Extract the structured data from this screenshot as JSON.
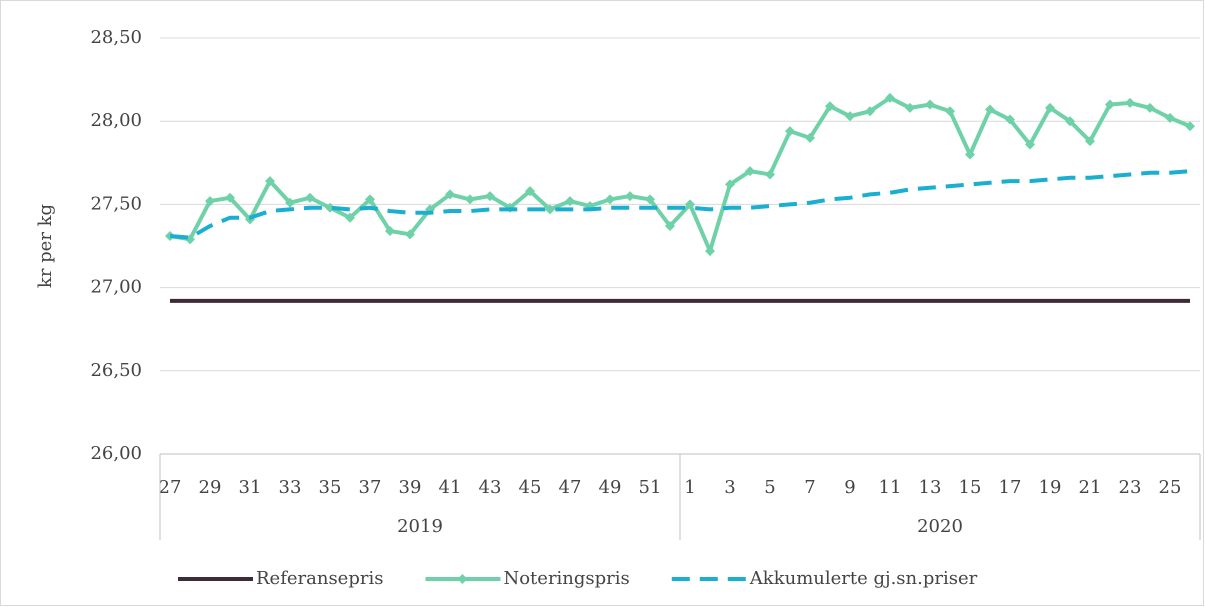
{
  "chart_data": {
    "type": "line",
    "y_label": "kr per kg",
    "categories": [
      27,
      null,
      29,
      null,
      31,
      null,
      33,
      null,
      35,
      null,
      37,
      null,
      39,
      null,
      41,
      null,
      43,
      null,
      45,
      null,
      47,
      null,
      49,
      null,
      51,
      null,
      1,
      null,
      3,
      null,
      5,
      null,
      7,
      null,
      9,
      null,
      11,
      null,
      13,
      null,
      15,
      null,
      17,
      null,
      19,
      null,
      21,
      null,
      23,
      null,
      25,
      null
    ],
    "groups": [
      {
        "label": "2019",
        "size": 26
      },
      {
        "label": "2020",
        "size": 26
      }
    ],
    "series": [
      {
        "name": "Referansepris",
        "color": "#3d2b35",
        "dash": false,
        "markers": false,
        "values": [
          26.92,
          26.92,
          26.92,
          26.92,
          26.92,
          26.92,
          26.92,
          26.92,
          26.92,
          26.92,
          26.92,
          26.92,
          26.92,
          26.92,
          26.92,
          26.92,
          26.92,
          26.92,
          26.92,
          26.92,
          26.92,
          26.92,
          26.92,
          26.92,
          26.92,
          26.92,
          26.92,
          26.92,
          26.92,
          26.92,
          26.92,
          26.92,
          26.92,
          26.92,
          26.92,
          26.92,
          26.92,
          26.92,
          26.92,
          26.92,
          26.92,
          26.92,
          26.92,
          26.92,
          26.92,
          26.92,
          26.92,
          26.92,
          26.92,
          26.92,
          26.92,
          26.92
        ]
      },
      {
        "name": "Noteringspris",
        "color": "#6fd1a8",
        "dash": false,
        "markers": true,
        "values": [
          27.31,
          27.29,
          27.52,
          27.54,
          27.41,
          27.64,
          27.51,
          27.54,
          27.48,
          27.42,
          27.53,
          27.34,
          27.32,
          27.47,
          27.56,
          27.53,
          27.55,
          27.48,
          27.58,
          27.47,
          27.52,
          27.49,
          27.53,
          27.55,
          27.53,
          27.37,
          27.5,
          27.22,
          27.62,
          27.7,
          27.68,
          27.94,
          27.9,
          28.09,
          28.03,
          28.06,
          28.14,
          28.08,
          28.1,
          28.06,
          27.8,
          28.07,
          28.01,
          27.86,
          28.08,
          28.0,
          27.88,
          28.1,
          28.11,
          28.08,
          28.02,
          27.97
        ]
      },
      {
        "name": "Akkumulerte gj.sn.priser",
        "color": "#1aaed0",
        "dash": true,
        "markers": false,
        "values": [
          27.31,
          27.3,
          27.37,
          27.42,
          27.42,
          27.46,
          27.47,
          27.48,
          27.48,
          27.47,
          27.48,
          27.46,
          27.45,
          27.45,
          27.46,
          27.46,
          27.47,
          27.47,
          27.47,
          27.47,
          27.47,
          27.47,
          27.48,
          27.48,
          27.48,
          27.48,
          27.48,
          27.47,
          27.48,
          27.48,
          27.49,
          27.5,
          27.51,
          27.53,
          27.54,
          27.56,
          27.57,
          27.59,
          27.6,
          27.61,
          27.62,
          27.63,
          27.64,
          27.64,
          27.65,
          27.66,
          27.66,
          27.67,
          27.68,
          27.69,
          27.69,
          27.7
        ]
      }
    ],
    "ylim": [
      26,
      28.5
    ],
    "yticks": [
      {
        "value": 26,
        "label": "26,00"
      },
      {
        "value": 26.5,
        "label": "26,50"
      },
      {
        "value": 27,
        "label": "27,00"
      },
      {
        "value": 27.5,
        "label": "27,50"
      },
      {
        "value": 28,
        "label": "28,00"
      },
      {
        "value": 28.5,
        "label": "28,50"
      }
    ],
    "grid": true,
    "legend": "bottom"
  }
}
